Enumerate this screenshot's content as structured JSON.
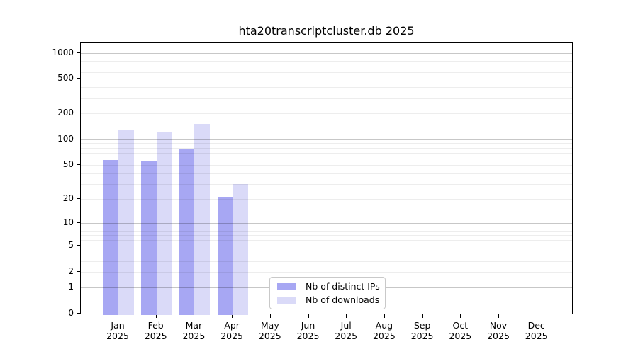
{
  "chart_data": {
    "type": "bar",
    "title": "hta20transcriptcluster.db 2025",
    "year_label": "2025",
    "categories": [
      "Jan",
      "Feb",
      "Mar",
      "Apr",
      "May",
      "Jun",
      "Jul",
      "Aug",
      "Sep",
      "Oct",
      "Nov",
      "Dec"
    ],
    "series": [
      {
        "name": "Nb of distinct IPs",
        "key": "distinct-ips",
        "color": "#a7a7f3",
        "values": [
          57,
          55,
          78,
          21,
          0,
          0,
          0,
          0,
          0,
          0,
          0,
          0
        ]
      },
      {
        "name": "Nb of downloads",
        "key": "downloads",
        "color": "#dadaf8",
        "values": [
          130,
          120,
          152,
          30,
          0,
          0,
          0,
          0,
          0,
          0,
          0,
          0
        ]
      }
    ],
    "y_ticks": [
      0,
      1,
      2,
      5,
      10,
      20,
      50,
      100,
      200,
      500,
      1000
    ],
    "y_scale": "log1p",
    "ylim": [
      0,
      1000
    ],
    "grid": true,
    "gridline_major_values": [
      1,
      10,
      100,
      1000
    ],
    "legend_position": "bottom-center",
    "axis_color": "#000000",
    "background_color": "#ffffff"
  }
}
